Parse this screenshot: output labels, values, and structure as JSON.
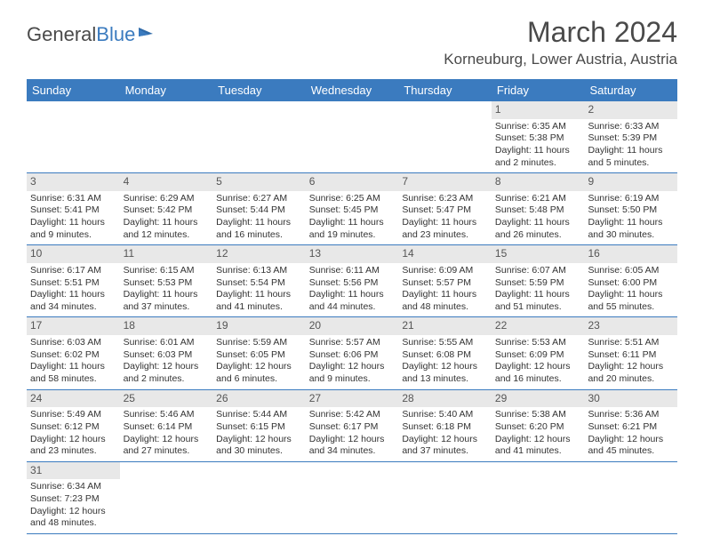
{
  "logo": {
    "text1": "General",
    "text2": "Blue"
  },
  "title": "March 2024",
  "location": "Korneuburg, Lower Austria, Austria",
  "colors": {
    "header_bg": "#3b7bbf",
    "daynum_bg": "#e8e8e8",
    "text": "#333333",
    "title": "#4a4a4a"
  },
  "day_names": [
    "Sunday",
    "Monday",
    "Tuesday",
    "Wednesday",
    "Thursday",
    "Friday",
    "Saturday"
  ],
  "weeks": [
    [
      null,
      null,
      null,
      null,
      null,
      {
        "n": "1",
        "sr": "Sunrise: 6:35 AM",
        "ss": "Sunset: 5:38 PM",
        "d1": "Daylight: 11 hours",
        "d2": "and 2 minutes."
      },
      {
        "n": "2",
        "sr": "Sunrise: 6:33 AM",
        "ss": "Sunset: 5:39 PM",
        "d1": "Daylight: 11 hours",
        "d2": "and 5 minutes."
      }
    ],
    [
      {
        "n": "3",
        "sr": "Sunrise: 6:31 AM",
        "ss": "Sunset: 5:41 PM",
        "d1": "Daylight: 11 hours",
        "d2": "and 9 minutes."
      },
      {
        "n": "4",
        "sr": "Sunrise: 6:29 AM",
        "ss": "Sunset: 5:42 PM",
        "d1": "Daylight: 11 hours",
        "d2": "and 12 minutes."
      },
      {
        "n": "5",
        "sr": "Sunrise: 6:27 AM",
        "ss": "Sunset: 5:44 PM",
        "d1": "Daylight: 11 hours",
        "d2": "and 16 minutes."
      },
      {
        "n": "6",
        "sr": "Sunrise: 6:25 AM",
        "ss": "Sunset: 5:45 PM",
        "d1": "Daylight: 11 hours",
        "d2": "and 19 minutes."
      },
      {
        "n": "7",
        "sr": "Sunrise: 6:23 AM",
        "ss": "Sunset: 5:47 PM",
        "d1": "Daylight: 11 hours",
        "d2": "and 23 minutes."
      },
      {
        "n": "8",
        "sr": "Sunrise: 6:21 AM",
        "ss": "Sunset: 5:48 PM",
        "d1": "Daylight: 11 hours",
        "d2": "and 26 minutes."
      },
      {
        "n": "9",
        "sr": "Sunrise: 6:19 AM",
        "ss": "Sunset: 5:50 PM",
        "d1": "Daylight: 11 hours",
        "d2": "and 30 minutes."
      }
    ],
    [
      {
        "n": "10",
        "sr": "Sunrise: 6:17 AM",
        "ss": "Sunset: 5:51 PM",
        "d1": "Daylight: 11 hours",
        "d2": "and 34 minutes."
      },
      {
        "n": "11",
        "sr": "Sunrise: 6:15 AM",
        "ss": "Sunset: 5:53 PM",
        "d1": "Daylight: 11 hours",
        "d2": "and 37 minutes."
      },
      {
        "n": "12",
        "sr": "Sunrise: 6:13 AM",
        "ss": "Sunset: 5:54 PM",
        "d1": "Daylight: 11 hours",
        "d2": "and 41 minutes."
      },
      {
        "n": "13",
        "sr": "Sunrise: 6:11 AM",
        "ss": "Sunset: 5:56 PM",
        "d1": "Daylight: 11 hours",
        "d2": "and 44 minutes."
      },
      {
        "n": "14",
        "sr": "Sunrise: 6:09 AM",
        "ss": "Sunset: 5:57 PM",
        "d1": "Daylight: 11 hours",
        "d2": "and 48 minutes."
      },
      {
        "n": "15",
        "sr": "Sunrise: 6:07 AM",
        "ss": "Sunset: 5:59 PM",
        "d1": "Daylight: 11 hours",
        "d2": "and 51 minutes."
      },
      {
        "n": "16",
        "sr": "Sunrise: 6:05 AM",
        "ss": "Sunset: 6:00 PM",
        "d1": "Daylight: 11 hours",
        "d2": "and 55 minutes."
      }
    ],
    [
      {
        "n": "17",
        "sr": "Sunrise: 6:03 AM",
        "ss": "Sunset: 6:02 PM",
        "d1": "Daylight: 11 hours",
        "d2": "and 58 minutes."
      },
      {
        "n": "18",
        "sr": "Sunrise: 6:01 AM",
        "ss": "Sunset: 6:03 PM",
        "d1": "Daylight: 12 hours",
        "d2": "and 2 minutes."
      },
      {
        "n": "19",
        "sr": "Sunrise: 5:59 AM",
        "ss": "Sunset: 6:05 PM",
        "d1": "Daylight: 12 hours",
        "d2": "and 6 minutes."
      },
      {
        "n": "20",
        "sr": "Sunrise: 5:57 AM",
        "ss": "Sunset: 6:06 PM",
        "d1": "Daylight: 12 hours",
        "d2": "and 9 minutes."
      },
      {
        "n": "21",
        "sr": "Sunrise: 5:55 AM",
        "ss": "Sunset: 6:08 PM",
        "d1": "Daylight: 12 hours",
        "d2": "and 13 minutes."
      },
      {
        "n": "22",
        "sr": "Sunrise: 5:53 AM",
        "ss": "Sunset: 6:09 PM",
        "d1": "Daylight: 12 hours",
        "d2": "and 16 minutes."
      },
      {
        "n": "23",
        "sr": "Sunrise: 5:51 AM",
        "ss": "Sunset: 6:11 PM",
        "d1": "Daylight: 12 hours",
        "d2": "and 20 minutes."
      }
    ],
    [
      {
        "n": "24",
        "sr": "Sunrise: 5:49 AM",
        "ss": "Sunset: 6:12 PM",
        "d1": "Daylight: 12 hours",
        "d2": "and 23 minutes."
      },
      {
        "n": "25",
        "sr": "Sunrise: 5:46 AM",
        "ss": "Sunset: 6:14 PM",
        "d1": "Daylight: 12 hours",
        "d2": "and 27 minutes."
      },
      {
        "n": "26",
        "sr": "Sunrise: 5:44 AM",
        "ss": "Sunset: 6:15 PM",
        "d1": "Daylight: 12 hours",
        "d2": "and 30 minutes."
      },
      {
        "n": "27",
        "sr": "Sunrise: 5:42 AM",
        "ss": "Sunset: 6:17 PM",
        "d1": "Daylight: 12 hours",
        "d2": "and 34 minutes."
      },
      {
        "n": "28",
        "sr": "Sunrise: 5:40 AM",
        "ss": "Sunset: 6:18 PM",
        "d1": "Daylight: 12 hours",
        "d2": "and 37 minutes."
      },
      {
        "n": "29",
        "sr": "Sunrise: 5:38 AM",
        "ss": "Sunset: 6:20 PM",
        "d1": "Daylight: 12 hours",
        "d2": "and 41 minutes."
      },
      {
        "n": "30",
        "sr": "Sunrise: 5:36 AM",
        "ss": "Sunset: 6:21 PM",
        "d1": "Daylight: 12 hours",
        "d2": "and 45 minutes."
      }
    ],
    [
      {
        "n": "31",
        "sr": "Sunrise: 6:34 AM",
        "ss": "Sunset: 7:23 PM",
        "d1": "Daylight: 12 hours",
        "d2": "and 48 minutes."
      },
      null,
      null,
      null,
      null,
      null,
      null
    ]
  ]
}
